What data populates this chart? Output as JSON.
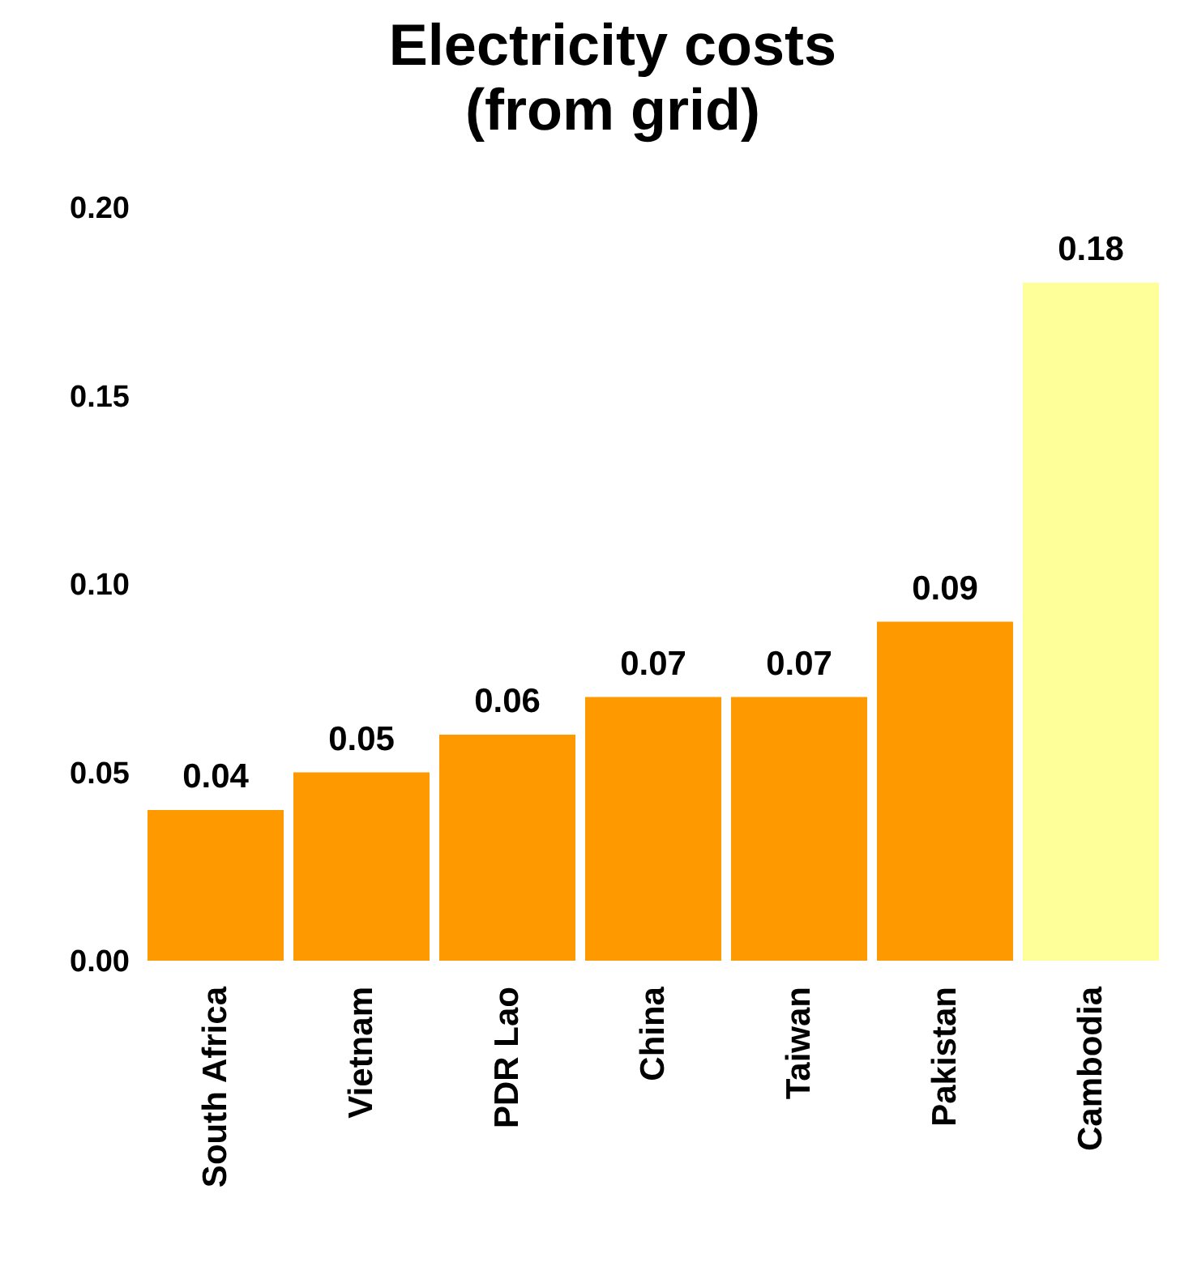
{
  "chart_data": {
    "type": "bar",
    "title": "Electricity costs (from grid)",
    "categories": [
      "South Africa",
      "Vietnam",
      "PDR Lao",
      "China",
      "Taiwan",
      "Pakistan",
      "Cambodia"
    ],
    "values": [
      0.04,
      0.05,
      0.06,
      0.07,
      0.07,
      0.09,
      0.18
    ],
    "colors": [
      "#ff9900",
      "#ff9900",
      "#ff9900",
      "#ff9900",
      "#ff9900",
      "#ff9900",
      "#ffff99"
    ],
    "ylim": [
      0,
      0.2
    ],
    "yticks": [
      {
        "value": 0,
        "label": "0.00"
      },
      {
        "value": 0.05,
        "label": "0.05"
      },
      {
        "value": 0.1,
        "label": "0.10"
      },
      {
        "value": 0.15,
        "label": "0.15"
      },
      {
        "value": 0.2,
        "label": "0.20"
      }
    ],
    "data_labels": true,
    "grid": false
  }
}
